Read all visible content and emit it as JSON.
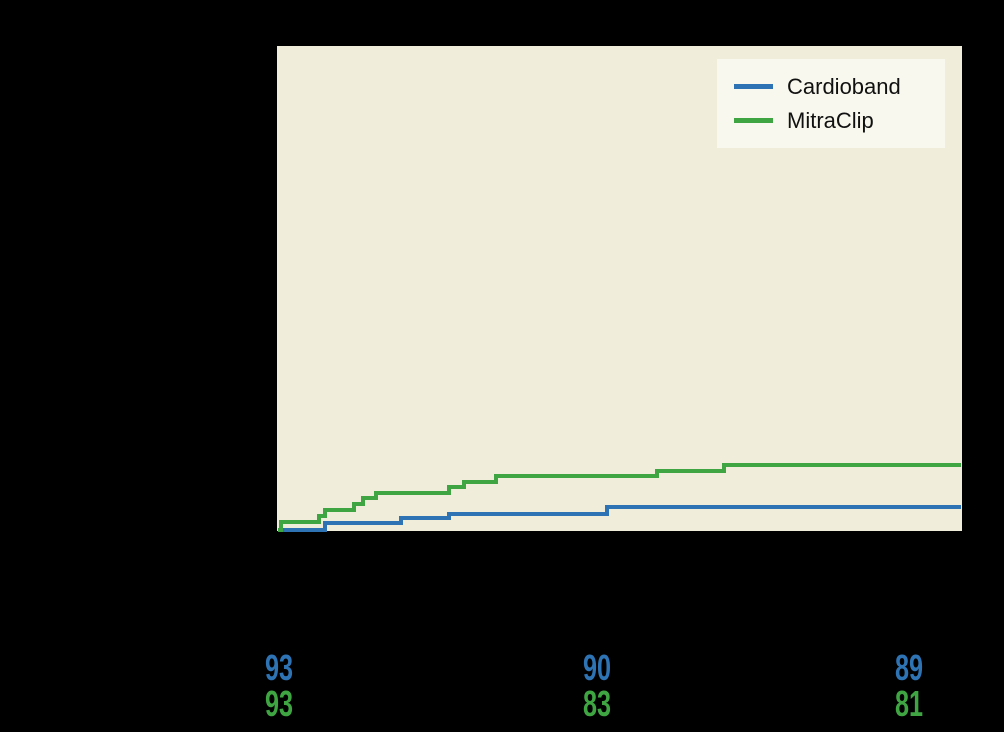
{
  "figure": {
    "background_color": "#000000",
    "plot_background_color": "#f0edda",
    "legend_background_color": "#f9f8ee"
  },
  "legend": {
    "items": [
      {
        "label": "Cardioband",
        "color": "#2e74b5"
      },
      {
        "label": "MitraClip",
        "color": "#3fa543"
      }
    ]
  },
  "chart_data": {
    "type": "line",
    "subtype": "kaplan-meier-step-cumulative-incidence",
    "title": "",
    "xlabel": "",
    "ylabel": "",
    "xlim": [
      0,
      2.16
    ],
    "ylim": [
      0,
      100
    ],
    "x_ticks": [
      0,
      1,
      2
    ],
    "grid": false,
    "legend_position": "top-right",
    "series": [
      {
        "name": "Cardioband",
        "color": "#2e74b5",
        "line_width": 4,
        "steps": [
          [
            0,
            0
          ],
          [
            0.15,
            1.4
          ],
          [
            0.39,
            2.5
          ],
          [
            0.54,
            3.3
          ],
          [
            1.04,
            4.7
          ]
        ],
        "end_t": 2.16
      },
      {
        "name": "MitraClip",
        "color": "#3fa543",
        "line_width": 4,
        "steps": [
          [
            0,
            0
          ],
          [
            0.01,
            1.6
          ],
          [
            0.13,
            2.9
          ],
          [
            0.15,
            4.2
          ],
          [
            0.24,
            5.4
          ],
          [
            0.27,
            6.6
          ],
          [
            0.31,
            7.7
          ],
          [
            0.54,
            8.9
          ],
          [
            0.59,
            9.9
          ],
          [
            0.69,
            11.2
          ],
          [
            1.2,
            12.3
          ],
          [
            1.41,
            13.4
          ]
        ],
        "end_t": 2.16
      }
    ],
    "at_risk": {
      "columns_t": [
        0,
        1,
        2
      ],
      "rows": [
        {
          "name": "Cardioband",
          "color": "#2e74b5",
          "values": [
            "93",
            "90",
            "89"
          ]
        },
        {
          "name": "MitraClip",
          "color": "#3fa543",
          "values": [
            "93",
            "83",
            "81"
          ]
        }
      ]
    }
  }
}
